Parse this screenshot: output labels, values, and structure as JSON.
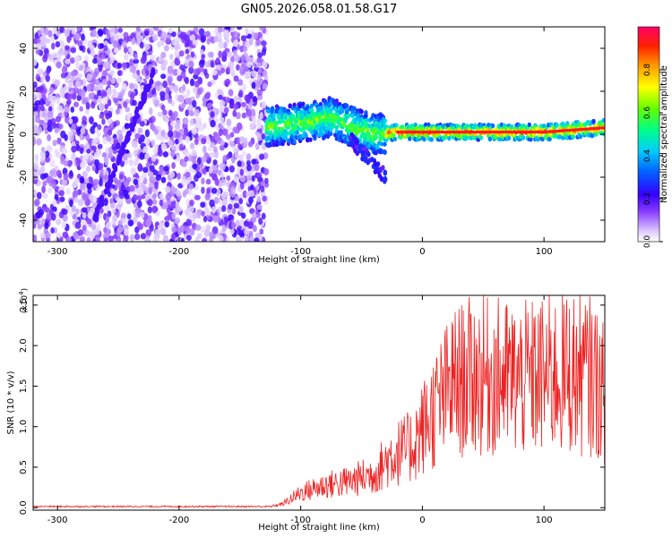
{
  "title": "GN05.2026.058.01.58.G17",
  "chart_data": [
    {
      "type": "heatmap",
      "title": "GN05.2026.058.01.58.G17",
      "xlabel": "Height of straight line (km)",
      "ylabel": "Frequency (Hz)",
      "xlim": [
        -320,
        150
      ],
      "ylim": [
        -50,
        50
      ],
      "x_ticks": [
        -300,
        -200,
        -100,
        0,
        100
      ],
      "x_tick_labels": [
        "-300",
        "-200",
        "-100",
        "0",
        "100"
      ],
      "y_ticks": [
        -40,
        -20,
        0,
        20,
        40
      ],
      "y_tick_labels": [
        "-40",
        "-20",
        "0",
        "20",
        "40"
      ],
      "colorbar": {
        "label": "Normalized spectral amplitude",
        "range": [
          0,
          1
        ],
        "ticks": [
          0.0,
          0.2,
          0.4,
          0.6,
          0.8
        ],
        "tick_labels": [
          "0.0",
          "0.2",
          "0.4",
          "0.6",
          "0.8"
        ],
        "colormap": [
          "#ffffff",
          "#cc99ff",
          "#6600ff",
          "#0000ff",
          "#00ccff",
          "#00ff66",
          "#ccff00",
          "#ffcc00",
          "#ff3300",
          "#ff0066"
        ]
      },
      "description_regions": {
        "noise_region_x": [
          -320,
          -128
        ],
        "signal_onset_x": -128,
        "signal_freq_track": [
          [
            -120,
            4
          ],
          [
            -90,
            6
          ],
          [
            -75,
            8
          ],
          [
            -60,
            4
          ],
          [
            -40,
            0
          ],
          [
            -20,
            1
          ],
          [
            0,
            1
          ],
          [
            50,
            1
          ],
          [
            100,
            1
          ],
          [
            150,
            3
          ]
        ]
      }
    },
    {
      "type": "line",
      "xlabel": "Height of straight line (km)",
      "ylabel": "SNR (10 * v/v)",
      "y_multiplier": "(x10",
      "y_multiplier_exp": "4",
      "y_multiplier_close": ")",
      "xlim": [
        -320,
        150
      ],
      "ylim": [
        -0.03,
        2.62
      ],
      "x_ticks": [
        -300,
        -200,
        -100,
        0,
        100
      ],
      "x_tick_labels": [
        "-300",
        "-200",
        "-100",
        "0",
        "100"
      ],
      "y_ticks": [
        0.0,
        0.5,
        1.0,
        1.5,
        2.0,
        2.5
      ],
      "y_tick_labels": [
        "0.0",
        "0.5",
        "1.0",
        "1.5",
        "2.0",
        "2.5"
      ],
      "series": [
        {
          "name": "SNR",
          "color": "#ee2222",
          "envelope_x": [
            -320,
            -130,
            -115,
            -100,
            -80,
            -60,
            -40,
            -25,
            -10,
            0,
            10,
            25,
            40,
            60,
            80,
            100,
            120,
            140,
            150
          ],
          "envelope_y": [
            0.0,
            0.0,
            0.05,
            0.2,
            0.3,
            0.35,
            0.45,
            0.7,
            0.8,
            1.05,
            1.3,
            1.65,
            1.75,
            1.75,
            1.7,
            1.75,
            1.8,
            1.75,
            1.5
          ]
        }
      ]
    }
  ]
}
